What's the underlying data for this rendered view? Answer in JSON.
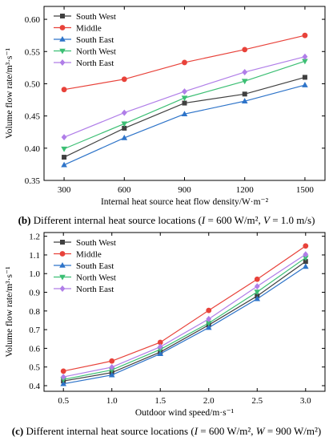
{
  "captions": {
    "b": {
      "letter": "(b)",
      "text": " Different internal heat source locations (",
      "v1": "I",
      "t1": " = 600 W/m²,",
      "v2": "V",
      "t2": " = 1.0 m/s)"
    },
    "c": {
      "letter": "(c)",
      "text": " Different internal heat source locations (",
      "v1": "I",
      "t1": " = 600 W/m²,",
      "v2": "W",
      "t2": " = 900 W/m²)"
    }
  },
  "colors": {
    "South West": "#404040",
    "Middle": "#e8423a",
    "South East": "#2e74c9",
    "North West": "#3cbf74",
    "North East": "#b07ee8"
  },
  "markers": {
    "South West": "square",
    "Middle": "circle",
    "South East": "triangle-up",
    "North West": "triangle-down",
    "North East": "diamond"
  },
  "chart_data": [
    {
      "type": "line",
      "xlabel": "Internal heat source heat flow density/W·m⁻²",
      "ylabel": "Volume flow rate/m³·s⁻¹",
      "x": [
        300,
        600,
        900,
        1200,
        1500
      ],
      "xticks": [
        "300",
        "600",
        "900",
        "1200",
        "1500"
      ],
      "xlim": [
        200,
        1600
      ],
      "ylim": [
        0.35,
        0.62
      ],
      "yticks": [
        "0.35",
        "0.40",
        "0.45",
        "0.50",
        "0.55",
        "0.60"
      ],
      "yticks_values": [
        0.35,
        0.4,
        0.45,
        0.5,
        0.55,
        0.6
      ],
      "legend": "top-left",
      "series": [
        {
          "name": "South West",
          "values": [
            0.386,
            0.431,
            0.47,
            0.484,
            0.51
          ]
        },
        {
          "name": "Middle",
          "values": [
            0.491,
            0.507,
            0.533,
            0.553,
            0.575
          ]
        },
        {
          "name": "South East",
          "values": [
            0.374,
            0.416,
            0.453,
            0.473,
            0.498
          ]
        },
        {
          "name": "North West",
          "values": [
            0.399,
            0.438,
            0.478,
            0.504,
            0.535
          ]
        },
        {
          "name": "North East",
          "values": [
            0.417,
            0.455,
            0.488,
            0.518,
            0.542
          ]
        }
      ]
    },
    {
      "type": "line",
      "xlabel": "Outdoor wind speed/m·s⁻¹",
      "ylabel": "Volume flow rate/m³·s⁻¹",
      "x": [
        0.5,
        1.0,
        1.5,
        2.0,
        2.5,
        3.0
      ],
      "xticks": [
        "0.5",
        "1.0",
        "1.5",
        "2.0",
        "2.5",
        "3.0"
      ],
      "xlim": [
        0.3,
        3.2
      ],
      "ylim": [
        0.37,
        1.22
      ],
      "yticks": [
        "0.4",
        "0.5",
        "0.6",
        "0.7",
        "0.8",
        "0.9",
        "1.0",
        "1.1",
        "1.2"
      ],
      "yticks_values": [
        0.4,
        0.5,
        0.6,
        0.7,
        0.8,
        0.9,
        1.0,
        1.1,
        1.2
      ],
      "legend": "top-left",
      "series": [
        {
          "name": "South West",
          "values": [
            0.425,
            0.47,
            0.58,
            0.725,
            0.88,
            1.065
          ]
        },
        {
          "name": "Middle",
          "values": [
            0.478,
            0.532,
            0.632,
            0.803,
            0.97,
            1.148
          ]
        },
        {
          "name": "South East",
          "values": [
            0.41,
            0.457,
            0.571,
            0.711,
            0.865,
            1.038
          ]
        },
        {
          "name": "North West",
          "values": [
            0.433,
            0.484,
            0.594,
            0.735,
            0.902,
            1.085
          ]
        },
        {
          "name": "North East",
          "values": [
            0.447,
            0.499,
            0.608,
            0.757,
            0.932,
            1.103
          ]
        }
      ]
    }
  ]
}
